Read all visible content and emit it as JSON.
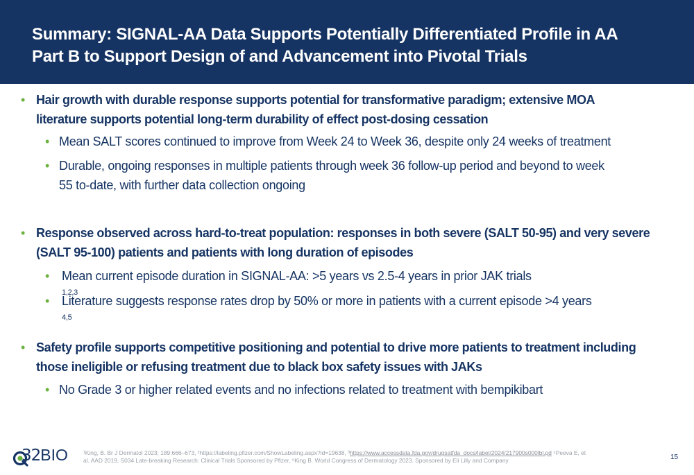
{
  "header": {
    "title_line1": "Summary: SIGNAL-AA Data Supports Potentially Differentiated Profile in AA",
    "title_line2": "Part B to Support Design of and Advancement into Pivotal Trials"
  },
  "bullets": [
    {
      "lines": [
        "Hair growth with durable response supports potential for transformative paradigm; extensive MOA",
        "literature supports potential long-term durability of effect post-dosing cessation"
      ],
      "subs": [
        {
          "lines": [
            "Mean SALT scores continued to improve from Week 24 to Week 36, despite only 24 weeks of treatment"
          ],
          "sup": ""
        },
        {
          "lines": [
            "Durable, ongoing responses in multiple patients through week 36 follow-up period and beyond to week",
            "55 to-date, with further data collection ongoing"
          ],
          "sup": ""
        }
      ]
    },
    {
      "lines": [
        "Response observed across hard-to-treat population: responses in both severe (SALT 50-95) and very severe",
        "(SALT 95-100) patients and patients with long duration of episodes"
      ],
      "subs": [
        {
          "lines": [
            "Mean current episode duration in SIGNAL-AA: >5 years vs 2.5-4 years in prior JAK trials"
          ],
          "sup": "1,2,3"
        },
        {
          "lines": [
            "Literature suggests response rates drop by 50% or more in patients with a current episode >4 years"
          ],
          "sup": "4,5"
        }
      ]
    },
    {
      "lines": [
        "Safety profile supports competitive positioning and potential to drive more patients to treatment including",
        "those ineligible or refusing treatment due to black box safety issues with JAKs"
      ],
      "subs": [
        {
          "lines": [
            "No Grade 3 or higher related events and no infections related to treatment with bempikibart"
          ],
          "sup": ""
        }
      ]
    }
  ],
  "footer": {
    "logo_number": "32",
    "logo_word": "BIO",
    "ref_line1_a": "¹King, B. Br J Dermatol 2023; 189:666–673, ²https://labeling.pfizer.com/ShowLabeling.aspx?id=19638, ³",
    "ref_line1_link": "https://www.accessdata.fda.gov/drugsatfda_docs/label/2024/217900s000lbl.pd",
    "ref_line1_b": " ⁴Peeva E, et",
    "ref_line2": "al. AAD 2019, S034 Late-breaking Research: Clinical Trials Sponsored by Pfizer, ⁵King B. World Congress of Dermatology 2023. Sponsored by Eli Lilly and Company",
    "page_number": "15"
  },
  "colors": {
    "header_bg": "#163463",
    "text_navy": "#163463",
    "bullet_green": "#6ab23e"
  },
  "icons": {
    "logo_mark": "q-logo-icon",
    "bullet": "bullet-dot-icon"
  }
}
